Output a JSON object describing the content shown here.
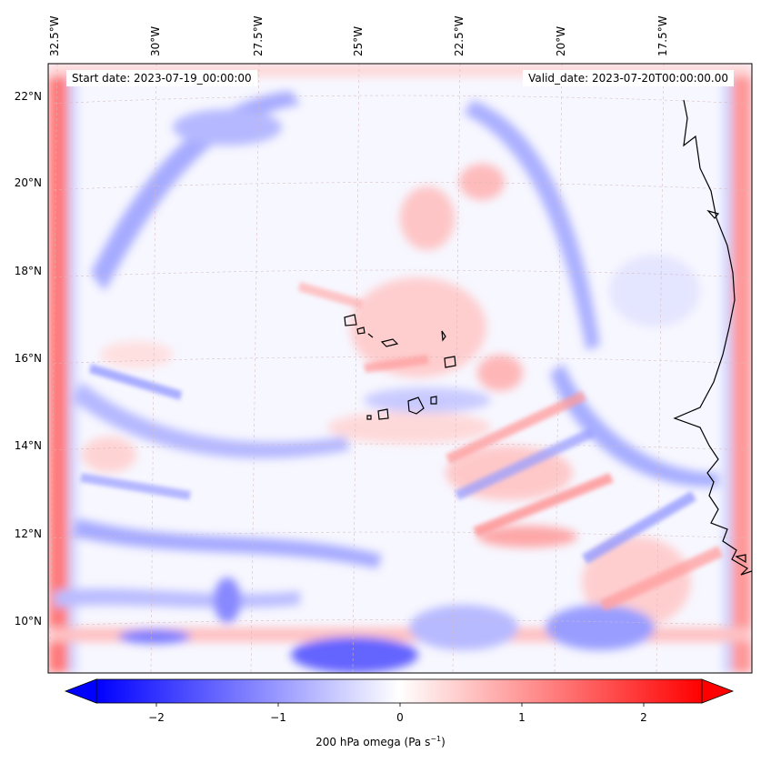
{
  "header": {
    "start_date": "Start date: 2023-07-19_00:00:00",
    "valid_date": "Valid_date: 2023-07-20T00:00:00.00"
  },
  "longitude_labels": [
    "32.5°W",
    "30°W",
    "27.5°W",
    "25°W",
    "22.5°W",
    "20°W",
    "17.5°W"
  ],
  "latitude_labels": [
    "22°N",
    "20°N",
    "18°N",
    "16°N",
    "14°N",
    "12°N",
    "10°N"
  ],
  "colorbar": {
    "label_main": "200 hPa omega (Pa s",
    "label_exp": "−1",
    "label_close": ")",
    "ticks": [
      "−2",
      "−1",
      "0",
      "1",
      "2"
    ],
    "range": [
      -2.7,
      2.7
    ],
    "colormap": "bwr",
    "extend": "both"
  },
  "colors": {
    "negative": "#0000ff",
    "neutral": "#ffffff",
    "positive": "#ff0000",
    "coastline": "#000000",
    "gridline": "#d9b8b8"
  },
  "map": {
    "projection": "lambert-conformal",
    "field": "200 hPa omega",
    "lon_range": [
      -33,
      -15.5
    ],
    "lat_range": [
      8.8,
      22.8
    ]
  }
}
